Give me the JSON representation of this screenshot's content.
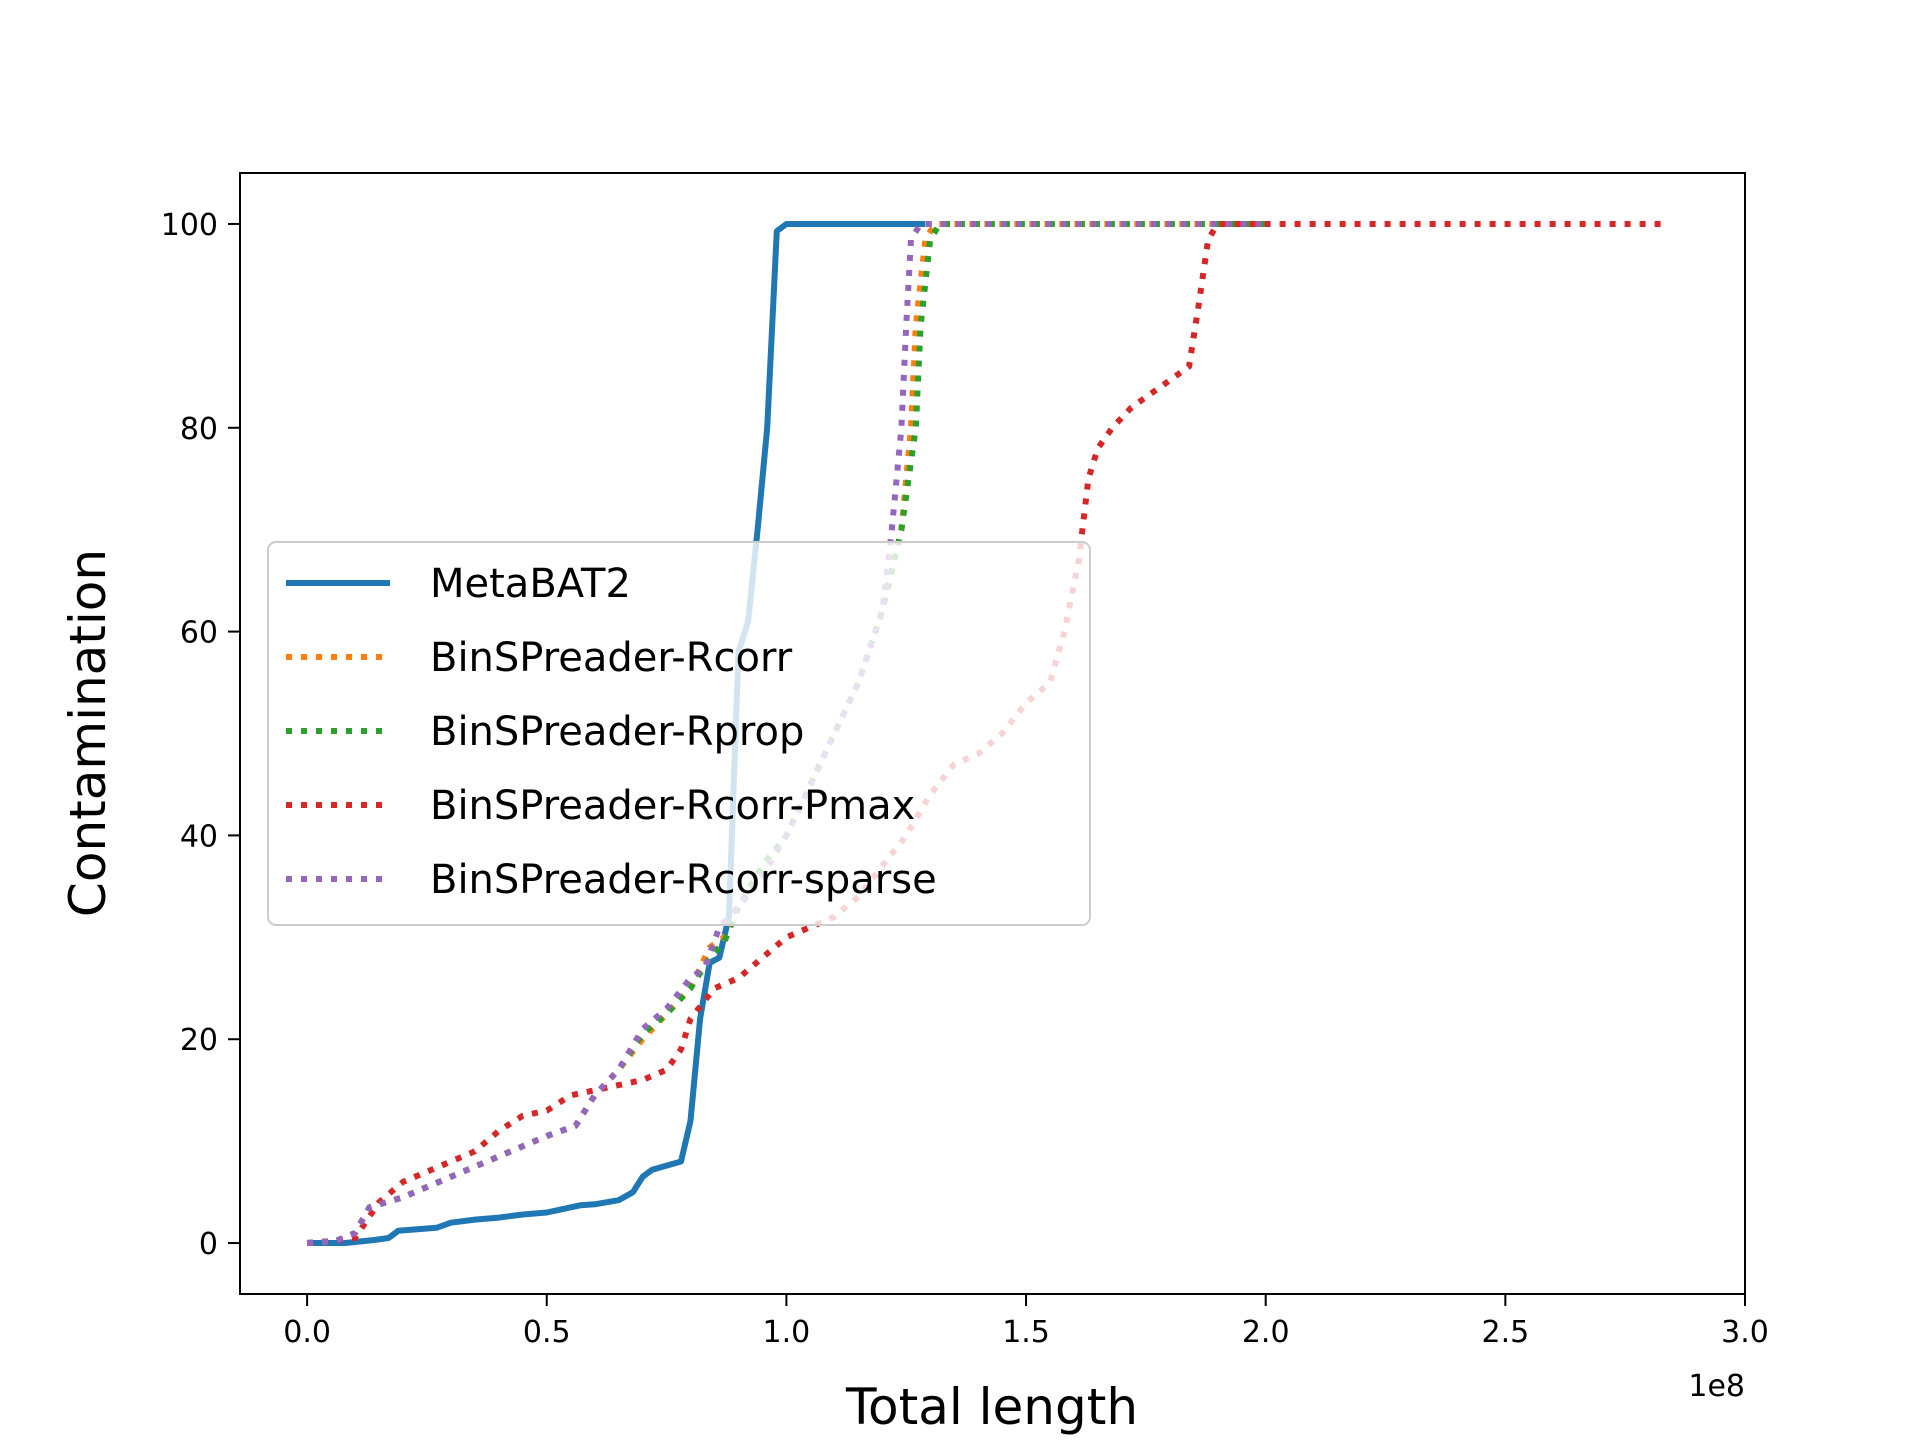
{
  "chart_data": {
    "type": "line",
    "title": "",
    "xlabel": "Total length",
    "ylabel": "Contamination",
    "x_offset_label": "1e8",
    "xlim": [
      -0.14,
      3.0
    ],
    "ylim": [
      -5,
      105
    ],
    "x_ticks": [
      0.0,
      0.5,
      1.0,
      1.5,
      2.0,
      2.5,
      3.0
    ],
    "x_tick_labels": [
      "0.0",
      "0.5",
      "1.0",
      "1.5",
      "2.0",
      "2.5",
      "3.0"
    ],
    "y_ticks": [
      0,
      20,
      40,
      60,
      80,
      100
    ],
    "y_tick_labels": [
      "0",
      "20",
      "40",
      "60",
      "80",
      "100"
    ],
    "grid": false,
    "legend_position": "center-left",
    "series": [
      {
        "name": "MetaBAT2",
        "color": "#1f77b4",
        "style": "solid",
        "x": [
          0.0,
          0.08,
          0.14,
          0.17,
          0.19,
          0.27,
          0.3,
          0.35,
          0.4,
          0.45,
          0.5,
          0.53,
          0.57,
          0.6,
          0.65,
          0.68,
          0.7,
          0.72,
          0.78,
          0.8,
          0.82,
          0.84,
          0.86,
          0.88,
          0.9,
          0.92,
          0.94,
          0.96,
          0.98,
          1.0,
          1.02,
          1.1,
          1.29
        ],
        "y": [
          0,
          0,
          0.3,
          0.5,
          1.2,
          1.5,
          2.0,
          2.3,
          2.5,
          2.8,
          3.0,
          3.3,
          3.7,
          3.8,
          4.2,
          5.0,
          6.5,
          7.2,
          8.0,
          12.0,
          22.0,
          27.5,
          28.0,
          32.0,
          58.0,
          61.0,
          70.0,
          80.0,
          99.3,
          100,
          100,
          100,
          100
        ]
      },
      {
        "name": "BinSPreader-Rcorr",
        "color": "#ff7f0e",
        "style": "dotted",
        "x": [
          0.0,
          0.06,
          0.1,
          0.13,
          0.2,
          0.25,
          0.3,
          0.4,
          0.5,
          0.56,
          0.6,
          0.65,
          0.7,
          0.75,
          0.8,
          0.84,
          0.87,
          0.9,
          0.95,
          1.0,
          1.05,
          1.1,
          1.15,
          1.2,
          1.24,
          1.26,
          1.27,
          1.29,
          1.31,
          1.5,
          2.0
        ],
        "y": [
          0,
          0.2,
          1.0,
          3.5,
          4.5,
          5.5,
          6.5,
          8.5,
          10.5,
          11.5,
          14.5,
          17.0,
          20.0,
          22.5,
          25.0,
          29.0,
          30.0,
          33.0,
          37.0,
          40.0,
          45.0,
          50.0,
          55.0,
          62.0,
          70.0,
          80.0,
          90.0,
          98.5,
          100,
          100,
          100
        ]
      },
      {
        "name": "BinSPreader-Rprop",
        "color": "#2ca02c",
        "style": "dotted",
        "x": [
          0.0,
          0.06,
          0.1,
          0.13,
          0.2,
          0.25,
          0.3,
          0.4,
          0.5,
          0.56,
          0.6,
          0.65,
          0.7,
          0.75,
          0.8,
          0.84,
          0.87,
          0.9,
          0.95,
          1.0,
          1.05,
          1.1,
          1.15,
          1.2,
          1.24,
          1.27,
          1.28,
          1.3,
          1.32,
          1.5,
          2.0
        ],
        "y": [
          0,
          0.2,
          1.0,
          3.5,
          4.5,
          5.5,
          6.5,
          8.5,
          10.5,
          11.5,
          14.5,
          17.0,
          20.5,
          22.5,
          25.0,
          28.0,
          29.5,
          33.0,
          37.0,
          40.0,
          45.0,
          50.0,
          55.0,
          62.0,
          70.0,
          80.0,
          90.0,
          98.5,
          100,
          100,
          100
        ]
      },
      {
        "name": "BinSPreader-Rcorr-Pmax",
        "color": "#d62728",
        "style": "dotted",
        "x": [
          0.0,
          0.05,
          0.1,
          0.15,
          0.2,
          0.25,
          0.3,
          0.35,
          0.4,
          0.45,
          0.5,
          0.55,
          0.6,
          0.65,
          0.7,
          0.75,
          0.78,
          0.8,
          0.85,
          0.9,
          0.95,
          1.0,
          1.05,
          1.1,
          1.15,
          1.2,
          1.25,
          1.3,
          1.35,
          1.4,
          1.45,
          1.5,
          1.55,
          1.58,
          1.61,
          1.63,
          1.65,
          1.68,
          1.72,
          1.78,
          1.84,
          1.86,
          1.88,
          1.9,
          2.0,
          2.5,
          2.84
        ],
        "y": [
          0,
          0.2,
          0.5,
          4.0,
          6.0,
          7.0,
          8.0,
          9.0,
          11.0,
          12.5,
          13.0,
          14.5,
          15.0,
          15.5,
          16.0,
          17.0,
          19.0,
          22.0,
          25.0,
          26.0,
          28.0,
          30.0,
          31.0,
          32.0,
          34.0,
          37.0,
          40.0,
          44.0,
          47.0,
          48.0,
          50.0,
          53.0,
          55.0,
          60.0,
          67.0,
          75.0,
          78.0,
          80.0,
          82.0,
          84.0,
          86.0,
          92.0,
          98.5,
          100,
          100,
          100,
          100
        ]
      },
      {
        "name": "BinSPreader-Rcorr-sparse",
        "color": "#9467bd",
        "style": "dotted",
        "x": [
          0.0,
          0.06,
          0.1,
          0.13,
          0.2,
          0.25,
          0.3,
          0.4,
          0.5,
          0.56,
          0.6,
          0.65,
          0.7,
          0.75,
          0.8,
          0.83,
          0.86,
          0.9,
          0.95,
          1.0,
          1.05,
          1.1,
          1.15,
          1.2,
          1.22,
          1.24,
          1.25,
          1.26,
          1.28,
          1.3,
          1.5,
          2.0
        ],
        "y": [
          0,
          0.2,
          1.0,
          3.5,
          4.5,
          5.5,
          6.5,
          8.5,
          10.5,
          11.5,
          14.5,
          17.0,
          21.0,
          23.0,
          26.0,
          27.0,
          31.0,
          33.0,
          36.0,
          40.0,
          45.0,
          50.0,
          55.0,
          62.0,
          70.0,
          80.0,
          90.0,
          98.5,
          100,
          100,
          100,
          100
        ]
      }
    ]
  }
}
